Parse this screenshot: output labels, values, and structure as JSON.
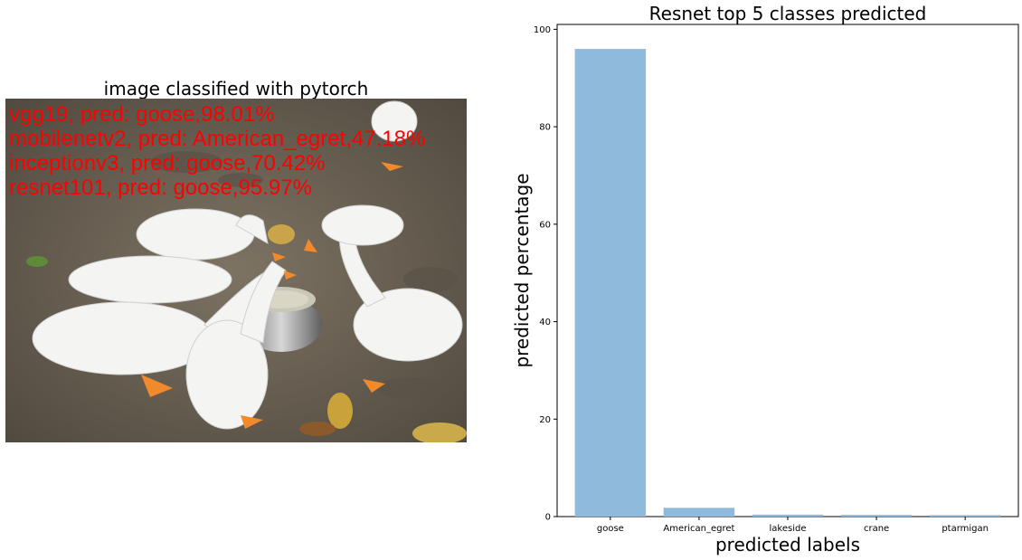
{
  "image_panel": {
    "title": "image classified with pytorch",
    "predictions": [
      "vgg19, pred: goose,98.01%",
      "mobilenetv2, pred: American_egret,47.18%",
      "inceptionv3, pred: goose,70.42%",
      "resnet101, pred: goose,95.97%"
    ],
    "overlay_color": "#ff0000"
  },
  "chart_data": {
    "type": "bar",
    "title": "Resnet top 5 classes predicted",
    "xlabel": "predicted labels",
    "ylabel": "predicted percentage",
    "categories": [
      "goose",
      "American_egret",
      "lakeside",
      "crane",
      "ptarmigan"
    ],
    "values": [
      95.97,
      1.8,
      0.4,
      0.35,
      0.3
    ],
    "ylim": [
      0,
      101
    ],
    "yticks": [
      0,
      20,
      40,
      60,
      80,
      100
    ],
    "bar_color": "#8fbadc",
    "grid": false
  }
}
